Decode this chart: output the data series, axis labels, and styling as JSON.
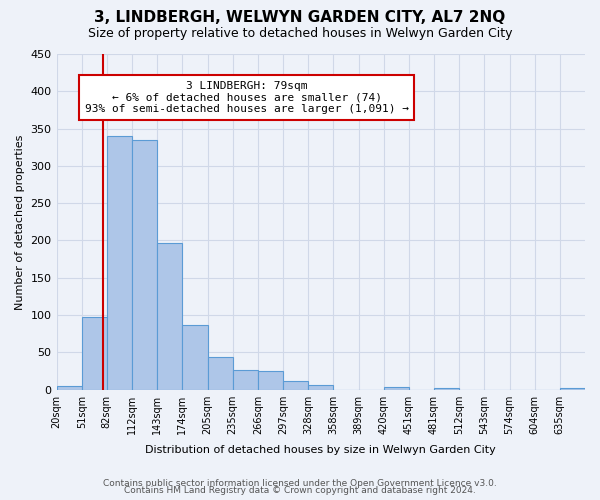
{
  "title": "3, LINDBERGH, WELWYN GARDEN CITY, AL7 2NQ",
  "subtitle": "Size of property relative to detached houses in Welwyn Garden City",
  "xlabel": "Distribution of detached houses by size in Welwyn Garden City",
  "ylabel": "Number of detached properties",
  "footer_lines": [
    "Contains HM Land Registry data © Crown copyright and database right 2024.",
    "Contains public sector information licensed under the Open Government Licence v3.0."
  ],
  "bin_labels": [
    "20sqm",
    "51sqm",
    "82sqm",
    "112sqm",
    "143sqm",
    "174sqm",
    "205sqm",
    "235sqm",
    "266sqm",
    "297sqm",
    "328sqm",
    "358sqm",
    "389sqm",
    "420sqm",
    "451sqm",
    "481sqm",
    "512sqm",
    "543sqm",
    "574sqm",
    "604sqm",
    "635sqm"
  ],
  "bar_heights": [
    5,
    98,
    340,
    335,
    197,
    87,
    44,
    26,
    25,
    11,
    6,
    0,
    0,
    4,
    0,
    2,
    0,
    0,
    0,
    0,
    2
  ],
  "bar_color": "#aec6e8",
  "bar_edge_color": "#5b9bd5",
  "property_line_x": 79,
  "property_line_bin_index": 1.85,
  "annotation_title": "3 LINDBERGH: 79sqm",
  "annotation_line1": "← 6% of detached houses are smaller (74)",
  "annotation_line2": "93% of semi-detached houses are larger (1,091) →",
  "annotation_box_color": "#ffffff",
  "annotation_box_edge": "#cc0000",
  "red_line_color": "#cc0000",
  "ylim": [
    0,
    450
  ],
  "yticks": [
    0,
    50,
    100,
    150,
    200,
    250,
    300,
    350,
    400,
    450
  ],
  "grid_color": "#d0d8e8",
  "background_color": "#eef2f9"
}
